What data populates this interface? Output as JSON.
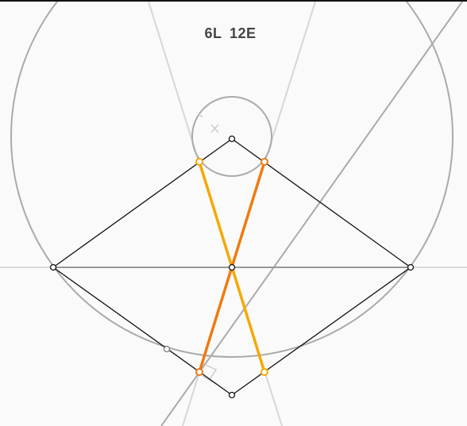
{
  "status": {
    "lines_label": "6L",
    "elements_label": "12E"
  },
  "colors": {
    "background": "#fafafa",
    "construction": "#aaaaaa",
    "faint_construction": "#d6d6d6",
    "figure": "#111111",
    "solution_a": "#f5a800",
    "solution_b": "#f07a10",
    "point_fill": "#ffffff"
  },
  "tools": {
    "active": "compass"
  }
}
